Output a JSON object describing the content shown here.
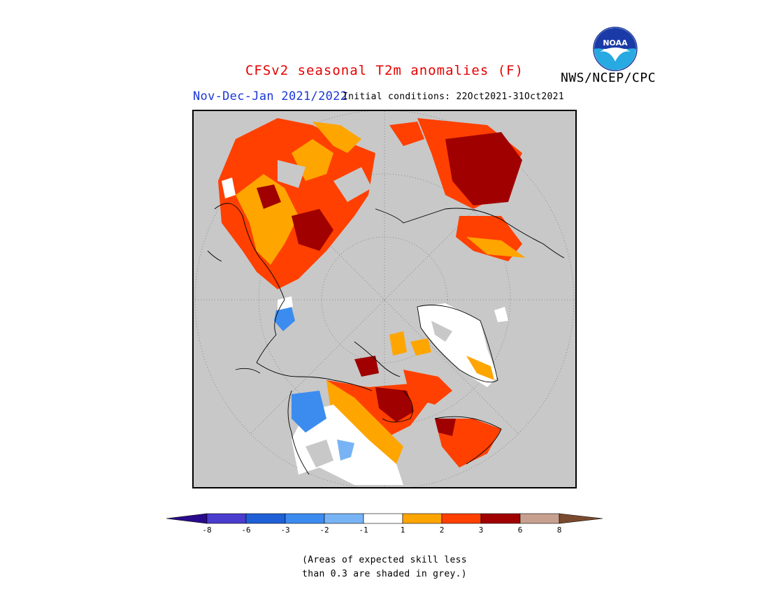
{
  "map": {
    "title": "CFSv2 seasonal T2m anomalies (F)",
    "agency": "NWS/NCEP/CPC",
    "logo_text": "NOAA",
    "period": "Nov-Dec-Jan 2021/2022",
    "initial_conditions": "Initial conditions: 22Oct2021-31Oct2021",
    "projection": "north-polar-stereographic",
    "grey_meaning": "Areas of expected skill less than 0.3 are shaded in grey."
  },
  "legend": {
    "colors": [
      "#2a0a8c",
      "#4a3ccc",
      "#1f60d6",
      "#3c8cf0",
      "#78b4f5",
      "#ffffff",
      "#ffa500",
      "#ff4000",
      "#a00000",
      "#c8a090",
      "#7a4a2e"
    ],
    "tick_labels": [
      "-8",
      "-6",
      "-3",
      "-2",
      "-1",
      "1",
      "2",
      "3",
      "6",
      "8"
    ],
    "extend": "both"
  },
  "notes": {
    "line1": "(Areas of expected skill less",
    "line2": "than 0.3 are shaded in grey.)"
  },
  "colors": {
    "title_red": "#e60000",
    "period_blue": "#1a37d6",
    "no_skill_grey": "#c8c8c8"
  }
}
